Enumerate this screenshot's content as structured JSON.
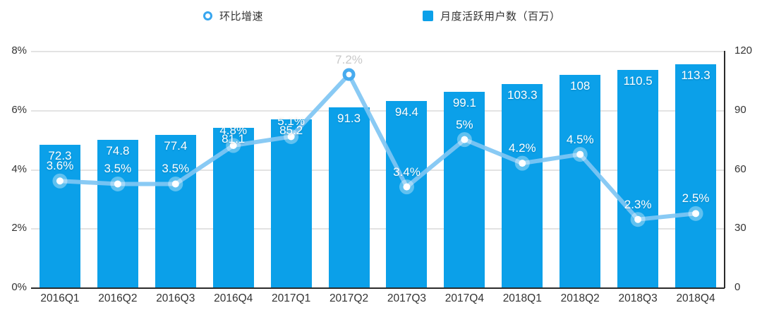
{
  "legend": {
    "items": [
      {
        "label": "环比增速",
        "type": "line",
        "color": "#38a6ef"
      },
      {
        "label": "月度活跃用户数（百万）",
        "type": "bar",
        "color": "#0ba0e9"
      }
    ]
  },
  "chart_data": {
    "type": "bar+line combo",
    "categories": [
      "2016Q1",
      "2016Q2",
      "2016Q3",
      "2016Q4",
      "2017Q1",
      "2017Q2",
      "2017Q3",
      "2017Q4",
      "2018Q1",
      "2018Q2",
      "2018Q3",
      "2018Q4"
    ],
    "series": [
      {
        "name": "月度活跃用户数（百万）",
        "type": "bar",
        "axis": "right",
        "values": [
          72.3,
          74.8,
          77.4,
          81.1,
          85.2,
          91.3,
          94.4,
          99.1,
          103.3,
          108,
          110.5,
          113.3
        ],
        "labels": [
          "72.3",
          "74.8",
          "77.4",
          "81.1",
          "85.2",
          "91.3",
          "94.4",
          "99.1",
          "103.3",
          "108",
          "110.5",
          "113.3"
        ],
        "color": "#0ba0e9"
      },
      {
        "name": "环比增速",
        "type": "line",
        "axis": "left",
        "values": [
          3.6,
          3.5,
          3.5,
          4.8,
          5.1,
          7.2,
          3.4,
          5.0,
          4.2,
          4.5,
          2.3,
          2.5
        ],
        "labels": [
          "3.6%",
          "3.5%",
          "3.5%",
          "4.8%",
          "5.1%",
          "7.2%",
          "3.4%",
          "5%",
          "4.2%",
          "4.5%",
          "2.3%",
          "2.5%"
        ],
        "color": "#7fc6f3",
        "marker_ring_color": "#47abef"
      }
    ],
    "left_axis": {
      "ticks": [
        "8%",
        "6%",
        "4%",
        "2%",
        "0%"
      ],
      "min": 0,
      "max": 8
    },
    "right_axis": {
      "ticks": [
        "120",
        "90",
        "60",
        "30",
        "0"
      ],
      "min": 0,
      "max": 120
    },
    "grid": true,
    "legend_position": "top"
  },
  "colors": {
    "bar": "#0ba0e9",
    "line": "#7fc6f3",
    "marker_ring": "#47abef",
    "grid": "#e3e3e3",
    "axis": "#2b2b2b",
    "label_white": "#ffffff",
    "label_muted": "#c9c9c9",
    "tick_text": "#333333"
  }
}
